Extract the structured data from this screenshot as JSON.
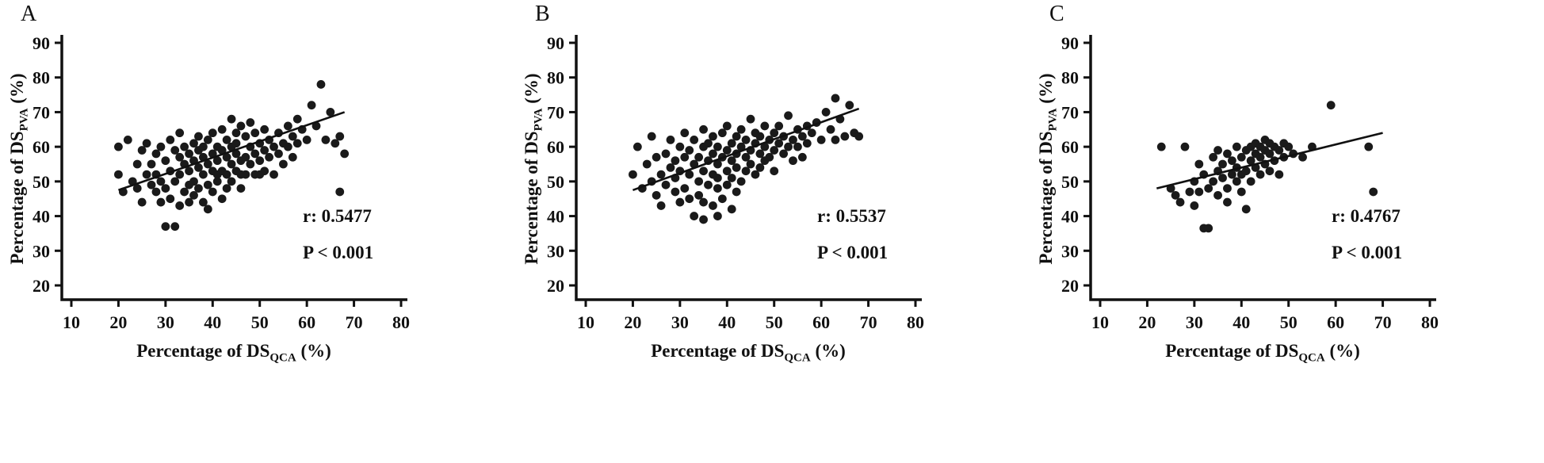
{
  "figure_title": "",
  "axis": {
    "x_label_main": "Percentage of DS",
    "x_label_sub": "QCA",
    "x_label_suffix": " (%)",
    "y_label_main": "Percentage of DS",
    "y_label_sub": "PVA",
    "y_label_suffix": " (%)"
  },
  "panels": [
    {
      "label": "A",
      "r_label": "r: 0.5477",
      "p_label": "P < 0.001"
    },
    {
      "label": "B",
      "r_label": "r: 0.5537",
      "p_label": "P < 0.001"
    },
    {
      "label": "C",
      "r_label": "r: 0.4767",
      "p_label": "P < 0.001"
    }
  ],
  "chart_data": [
    {
      "type": "scatter",
      "title": "A",
      "xlabel": "Percentage of DS_QCA (%)",
      "ylabel": "Percentage of DS_PVA (%)",
      "xlim": [
        10,
        80
      ],
      "ylim": [
        20,
        90
      ],
      "xticks": [
        10,
        20,
        30,
        40,
        50,
        60,
        70,
        80
      ],
      "yticks": [
        20,
        30,
        40,
        50,
        60,
        70,
        80,
        90
      ],
      "r": "0.5477",
      "p": "< 0.001",
      "trendline": {
        "x1": 20,
        "y1": 47.5,
        "x2": 68,
        "y2": 70
      },
      "points": [
        [
          20,
          60
        ],
        [
          20,
          52
        ],
        [
          21,
          47
        ],
        [
          22,
          62
        ],
        [
          23,
          50
        ],
        [
          24,
          55
        ],
        [
          24,
          48
        ],
        [
          25,
          59
        ],
        [
          25,
          44
        ],
        [
          26,
          52
        ],
        [
          26,
          61
        ],
        [
          27,
          49
        ],
        [
          27,
          55
        ],
        [
          28,
          47
        ],
        [
          28,
          58
        ],
        [
          28,
          52
        ],
        [
          29,
          44
        ],
        [
          29,
          60
        ],
        [
          29,
          50
        ],
        [
          30,
          37
        ],
        [
          30,
          56
        ],
        [
          30,
          48
        ],
        [
          31,
          62
        ],
        [
          31,
          53
        ],
        [
          31,
          45
        ],
        [
          32,
          59
        ],
        [
          32,
          50
        ],
        [
          32,
          37
        ],
        [
          33,
          57
        ],
        [
          33,
          43
        ],
        [
          33,
          64
        ],
        [
          33,
          52
        ],
        [
          34,
          47
        ],
        [
          34,
          60
        ],
        [
          34,
          55
        ],
        [
          35,
          49
        ],
        [
          35,
          58
        ],
        [
          35,
          44
        ],
        [
          35,
          53
        ],
        [
          36,
          61
        ],
        [
          36,
          50
        ],
        [
          36,
          56
        ],
        [
          36,
          46
        ],
        [
          37,
          54
        ],
        [
          37,
          59
        ],
        [
          37,
          48
        ],
        [
          37,
          63
        ],
        [
          38,
          52
        ],
        [
          38,
          57
        ],
        [
          38,
          44
        ],
        [
          38,
          60
        ],
        [
          39,
          55
        ],
        [
          39,
          49
        ],
        [
          39,
          62
        ],
        [
          39,
          42
        ],
        [
          40,
          53
        ],
        [
          40,
          58
        ],
        [
          40,
          47
        ],
        [
          40,
          64
        ],
        [
          41,
          52
        ],
        [
          41,
          56
        ],
        [
          41,
          60
        ],
        [
          41,
          50
        ],
        [
          42,
          45
        ],
        [
          42,
          59
        ],
        [
          42,
          53
        ],
        [
          42,
          65
        ],
        [
          43,
          48
        ],
        [
          43,
          57
        ],
        [
          43,
          62
        ],
        [
          43,
          52
        ],
        [
          44,
          68
        ],
        [
          44,
          55
        ],
        [
          44,
          60
        ],
        [
          44,
          50
        ],
        [
          45,
          64
        ],
        [
          45,
          58
        ],
        [
          45,
          53
        ],
        [
          45,
          61
        ],
        [
          46,
          48
        ],
        [
          46,
          66
        ],
        [
          46,
          56
        ],
        [
          46,
          52
        ],
        [
          47,
          63
        ],
        [
          47,
          57
        ],
        [
          47,
          52
        ],
        [
          48,
          60
        ],
        [
          48,
          55
        ],
        [
          48,
          67
        ],
        [
          49,
          58
        ],
        [
          49,
          52
        ],
        [
          49,
          64
        ],
        [
          50,
          61
        ],
        [
          50,
          56
        ],
        [
          50,
          52
        ],
        [
          51,
          59
        ],
        [
          51,
          65
        ],
        [
          51,
          53
        ],
        [
          52,
          62
        ],
        [
          52,
          57
        ],
        [
          53,
          60
        ],
        [
          53,
          52
        ],
        [
          54,
          64
        ],
        [
          54,
          58
        ],
        [
          55,
          61
        ],
        [
          55,
          55
        ],
        [
          56,
          66
        ],
        [
          56,
          60
        ],
        [
          57,
          63
        ],
        [
          57,
          57
        ],
        [
          58,
          68
        ],
        [
          58,
          61
        ],
        [
          59,
          65
        ],
        [
          60,
          62
        ],
        [
          61,
          72
        ],
        [
          62,
          66
        ],
        [
          63,
          78
        ],
        [
          64,
          62
        ],
        [
          65,
          70
        ],
        [
          66,
          61
        ],
        [
          67,
          47
        ],
        [
          67,
          63
        ],
        [
          68,
          58
        ]
      ]
    },
    {
      "type": "scatter",
      "title": "B",
      "xlabel": "Percentage of DS_QCA (%)",
      "ylabel": "Percentage of DS_PVA (%)",
      "xlim": [
        10,
        80
      ],
      "ylim": [
        20,
        90
      ],
      "xticks": [
        10,
        20,
        30,
        40,
        50,
        60,
        70,
        80
      ],
      "yticks": [
        20,
        30,
        40,
        50,
        60,
        70,
        80,
        90
      ],
      "r": "0.5537",
      "p": "< 0.001",
      "trendline": {
        "x1": 20,
        "y1": 47.5,
        "x2": 68,
        "y2": 71
      },
      "points": [
        [
          20,
          52
        ],
        [
          21,
          60
        ],
        [
          22,
          48
        ],
        [
          23,
          55
        ],
        [
          24,
          50
        ],
        [
          24,
          63
        ],
        [
          25,
          46
        ],
        [
          25,
          57
        ],
        [
          26,
          52
        ],
        [
          26,
          43
        ],
        [
          27,
          58
        ],
        [
          27,
          49
        ],
        [
          28,
          54
        ],
        [
          28,
          62
        ],
        [
          29,
          47
        ],
        [
          29,
          56
        ],
        [
          29,
          51
        ],
        [
          30,
          60
        ],
        [
          30,
          44
        ],
        [
          30,
          53
        ],
        [
          31,
          57
        ],
        [
          31,
          48
        ],
        [
          31,
          64
        ],
        [
          32,
          52
        ],
        [
          32,
          59
        ],
        [
          32,
          45
        ],
        [
          33,
          55
        ],
        [
          33,
          40
        ],
        [
          33,
          62
        ],
        [
          34,
          50
        ],
        [
          34,
          57
        ],
        [
          34,
          46
        ],
        [
          35,
          60
        ],
        [
          35,
          53
        ],
        [
          35,
          44
        ],
        [
          35,
          65
        ],
        [
          36,
          56
        ],
        [
          36,
          49
        ],
        [
          36,
          61
        ],
        [
          37,
          52
        ],
        [
          37,
          58
        ],
        [
          37,
          43
        ],
        [
          37,
          63
        ],
        [
          38,
          55
        ],
        [
          38,
          48
        ],
        [
          38,
          60
        ],
        [
          38,
          51
        ],
        [
          39,
          57
        ],
        [
          39,
          45
        ],
        [
          39,
          64
        ],
        [
          40,
          53
        ],
        [
          40,
          59
        ],
        [
          40,
          49
        ],
        [
          40,
          66
        ],
        [
          41,
          56
        ],
        [
          41,
          61
        ],
        [
          41,
          51
        ],
        [
          42,
          58
        ],
        [
          42,
          47
        ],
        [
          42,
          63
        ],
        [
          42,
          54
        ],
        [
          43,
          60
        ],
        [
          43,
          50
        ],
        [
          43,
          65
        ],
        [
          44,
          57
        ],
        [
          44,
          62
        ],
        [
          44,
          53
        ],
        [
          45,
          59
        ],
        [
          45,
          68
        ],
        [
          45,
          55
        ],
        [
          46,
          61
        ],
        [
          46,
          52
        ],
        [
          46,
          64
        ],
        [
          47,
          58
        ],
        [
          47,
          63
        ],
        [
          47,
          54
        ],
        [
          48,
          60
        ],
        [
          48,
          66
        ],
        [
          48,
          56
        ],
        [
          49,
          62
        ],
        [
          49,
          57
        ],
        [
          50,
          64
        ],
        [
          50,
          59
        ],
        [
          50,
          53
        ],
        [
          51,
          61
        ],
        [
          51,
          66
        ],
        [
          52,
          58
        ],
        [
          52,
          63
        ],
        [
          53,
          60
        ],
        [
          53,
          69
        ],
        [
          54,
          62
        ],
        [
          54,
          56
        ],
        [
          55,
          65
        ],
        [
          55,
          60
        ],
        [
          56,
          63
        ],
        [
          56,
          57
        ],
        [
          57,
          66
        ],
        [
          57,
          61
        ],
        [
          58,
          64
        ],
        [
          59,
          67
        ],
        [
          60,
          62
        ],
        [
          61,
          70
        ],
        [
          62,
          65
        ],
        [
          63,
          74
        ],
        [
          63,
          62
        ],
        [
          64,
          68
        ],
        [
          65,
          63
        ],
        [
          66,
          72
        ],
        [
          67,
          64
        ],
        [
          68,
          63
        ],
        [
          41,
          42
        ],
        [
          38,
          40
        ],
        [
          35,
          39
        ]
      ]
    },
    {
      "type": "scatter",
      "title": "C",
      "xlabel": "Percentage of DS_QCA (%)",
      "ylabel": "Percentage of DS_PVA (%)",
      "xlim": [
        10,
        80
      ],
      "ylim": [
        20,
        90
      ],
      "xticks": [
        10,
        20,
        30,
        40,
        50,
        60,
        70,
        80
      ],
      "yticks": [
        20,
        30,
        40,
        50,
        60,
        70,
        80,
        90
      ],
      "r": "0.4767",
      "p": "< 0.001",
      "trendline": {
        "x1": 22,
        "y1": 48,
        "x2": 70,
        "y2": 64
      },
      "points": [
        [
          23,
          60
        ],
        [
          25,
          48
        ],
        [
          26,
          46
        ],
        [
          27,
          44
        ],
        [
          28,
          60
        ],
        [
          29,
          47
        ],
        [
          30,
          50
        ],
        [
          30,
          43
        ],
        [
          31,
          55
        ],
        [
          31,
          47
        ],
        [
          32,
          52
        ],
        [
          32,
          36.5
        ],
        [
          33,
          48
        ],
        [
          33,
          36.5
        ],
        [
          34,
          57
        ],
        [
          34,
          50
        ],
        [
          35,
          53
        ],
        [
          35,
          46
        ],
        [
          35,
          59
        ],
        [
          36,
          51
        ],
        [
          36,
          55
        ],
        [
          37,
          48
        ],
        [
          37,
          58
        ],
        [
          37,
          44
        ],
        [
          38,
          52
        ],
        [
          38,
          56
        ],
        [
          39,
          50
        ],
        [
          39,
          60
        ],
        [
          39,
          54
        ],
        [
          40,
          57
        ],
        [
          40,
          47
        ],
        [
          40,
          52
        ],
        [
          41,
          59
        ],
        [
          41,
          53
        ],
        [
          41,
          42
        ],
        [
          42,
          56
        ],
        [
          42,
          60
        ],
        [
          42,
          50
        ],
        [
          43,
          58
        ],
        [
          43,
          54
        ],
        [
          43,
          61
        ],
        [
          44,
          57
        ],
        [
          44,
          52
        ],
        [
          44,
          60
        ],
        [
          45,
          59
        ],
        [
          45,
          55
        ],
        [
          45,
          62
        ],
        [
          46,
          58
        ],
        [
          46,
          53
        ],
        [
          46,
          61
        ],
        [
          47,
          60
        ],
        [
          47,
          56
        ],
        [
          48,
          59
        ],
        [
          48,
          52
        ],
        [
          49,
          61
        ],
        [
          49,
          57
        ],
        [
          50,
          60
        ],
        [
          51,
          58
        ],
        [
          53,
          57
        ],
        [
          55,
          60
        ],
        [
          59,
          72
        ],
        [
          67,
          60
        ],
        [
          68,
          47
        ]
      ]
    }
  ]
}
